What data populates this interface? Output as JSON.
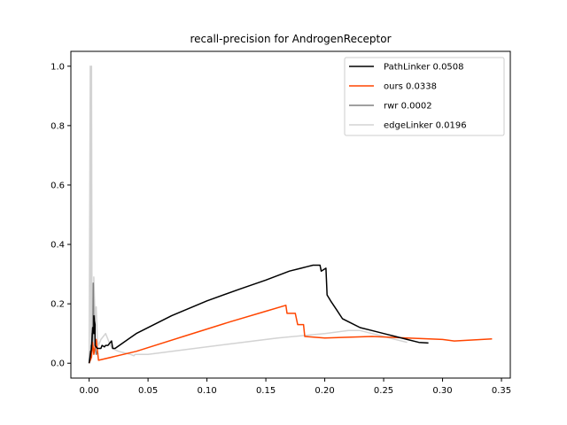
{
  "chart_data": {
    "type": "line",
    "title": "recall-precision for AndrogenReceptor",
    "xlabel": "",
    "ylabel": "",
    "xlim": [
      -0.0155,
      0.3575
    ],
    "ylim": [
      -0.05,
      1.05
    ],
    "xticks": [
      0.0,
      0.05,
      0.1,
      0.15,
      0.2,
      0.25,
      0.3,
      0.35
    ],
    "xtick_labels": [
      "0.00",
      "0.05",
      "0.10",
      "0.15",
      "0.20",
      "0.25",
      "0.30",
      "0.35"
    ],
    "yticks": [
      0.0,
      0.2,
      0.4,
      0.6,
      0.8,
      1.0
    ],
    "ytick_labels": [
      "0.0",
      "0.2",
      "0.4",
      "0.6",
      "0.8",
      "1.0"
    ],
    "grid": false,
    "legend_position": "top-right",
    "series": [
      {
        "name": "PathLinker 0.0508",
        "color": "#000000",
        "x": [
          0.0,
          0.002,
          0.003,
          0.004,
          0.004,
          0.005,
          0.005,
          0.007,
          0.008,
          0.01,
          0.011,
          0.013,
          0.014,
          0.016,
          0.018,
          0.019,
          0.02,
          0.022,
          0.04,
          0.07,
          0.1,
          0.128,
          0.15,
          0.17,
          0.18,
          0.185,
          0.19,
          0.196,
          0.197,
          0.201,
          0.202,
          0.205,
          0.21,
          0.215,
          0.22,
          0.23,
          0.24,
          0.25,
          0.26,
          0.27,
          0.28,
          0.288
        ],
        "y": [
          0.0,
          0.05,
          0.12,
          0.1,
          0.16,
          0.13,
          0.06,
          0.05,
          0.05,
          0.05,
          0.06,
          0.055,
          0.06,
          0.06,
          0.07,
          0.075,
          0.05,
          0.05,
          0.1,
          0.16,
          0.21,
          0.25,
          0.28,
          0.31,
          0.32,
          0.325,
          0.33,
          0.33,
          0.31,
          0.32,
          0.23,
          0.21,
          0.18,
          0.15,
          0.14,
          0.12,
          0.11,
          0.1,
          0.09,
          0.08,
          0.07,
          0.068
        ]
      },
      {
        "name": "ours 0.0338",
        "color": "#ff4500",
        "x": [
          0.0,
          0.002,
          0.003,
          0.004,
          0.006,
          0.008,
          0.04,
          0.08,
          0.12,
          0.15,
          0.167,
          0.168,
          0.175,
          0.177,
          0.182,
          0.183,
          0.2,
          0.24,
          0.27,
          0.3,
          0.31,
          0.342
        ],
        "y": [
          0.0,
          0.02,
          0.07,
          0.03,
          0.08,
          0.01,
          0.04,
          0.09,
          0.14,
          0.175,
          0.195,
          0.168,
          0.168,
          0.13,
          0.13,
          0.09,
          0.085,
          0.09,
          0.085,
          0.08,
          0.075,
          0.082
        ]
      },
      {
        "name": "rwr 0.0002",
        "color": "#808080",
        "x": [
          0.0,
          0.0008,
          0.0012,
          0.0016,
          0.002,
          0.0025,
          0.003,
          0.0035,
          0.004,
          0.0045,
          0.005,
          0.006,
          0.007,
          0.0075
        ],
        "y": [
          0.0,
          0.04,
          0.02,
          0.06,
          0.03,
          0.1,
          0.05,
          0.27,
          0.1,
          0.16,
          0.06,
          0.03,
          0.04,
          0.03
        ]
      },
      {
        "name": "edgeLinker 0.0196",
        "color": "#d3d3d3",
        "x": [
          0.0,
          0.001,
          0.0015,
          0.002,
          0.0025,
          0.003,
          0.0035,
          0.004,
          0.005,
          0.006,
          0.007,
          0.008,
          0.009,
          0.01,
          0.012,
          0.014,
          0.016,
          0.018,
          0.02,
          0.022,
          0.025,
          0.03,
          0.035,
          0.038,
          0.039,
          0.05,
          0.08,
          0.12,
          0.16,
          0.2,
          0.22,
          0.23,
          0.24,
          0.25,
          0.26,
          0.27
        ],
        "y": [
          0.0,
          1.0,
          0.05,
          1.0,
          0.1,
          0.25,
          0.12,
          0.29,
          0.15,
          0.19,
          0.08,
          0.06,
          0.07,
          0.08,
          0.09,
          0.1,
          0.08,
          0.06,
          0.05,
          0.045,
          0.04,
          0.035,
          0.03,
          0.025,
          0.03,
          0.03,
          0.045,
          0.065,
          0.085,
          0.1,
          0.11,
          0.11,
          0.1,
          0.09,
          0.08,
          0.07
        ]
      }
    ]
  }
}
